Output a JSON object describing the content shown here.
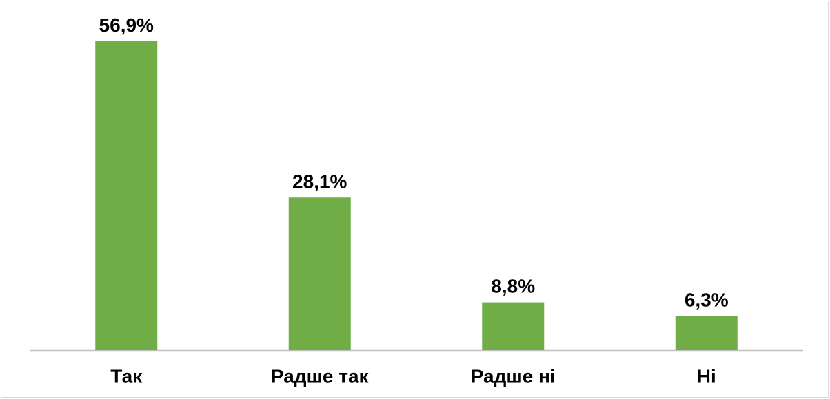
{
  "chart_data": {
    "type": "bar",
    "categories": [
      "Так",
      "Радше так",
      "Радше ні",
      "Ні"
    ],
    "values": [
      56.9,
      28.1,
      8.8,
      6.3
    ],
    "value_labels": [
      "56,9%",
      "28,1%",
      "8,8%",
      "6,3%"
    ],
    "color": "#70ad47"
  }
}
